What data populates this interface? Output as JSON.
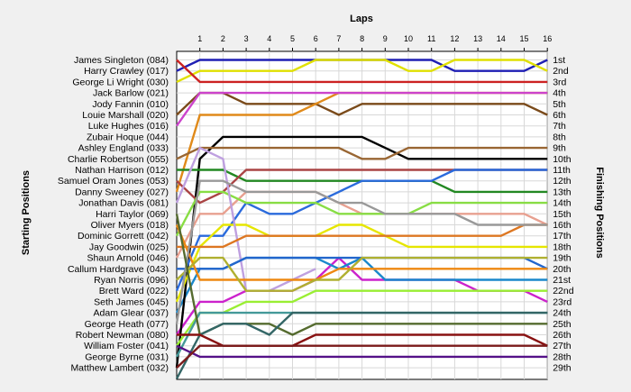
{
  "chart_data": {
    "type": "line",
    "title": "",
    "xlabel": "Laps",
    "ylabel_left": "Starting Positions",
    "ylabel_right": "Finishing Positions",
    "laps": [
      1,
      2,
      3,
      4,
      5,
      6,
      7,
      8,
      9,
      10,
      11,
      12,
      13,
      14,
      15,
      16
    ],
    "finish_labels": [
      "1st",
      "2nd",
      "3rd",
      "4th",
      "5th",
      "6th",
      "7th",
      "8th",
      "9th",
      "10th",
      "11th",
      "12th",
      "13th",
      "14th",
      "15th",
      "16th",
      "17th",
      "18th",
      "19th",
      "20th",
      "21st",
      "22nd",
      "23rd",
      "24th",
      "25th",
      "26th",
      "27th",
      "28th",
      "29th"
    ],
    "grid": true,
    "series": [
      {
        "name": "James Singleton (084)",
        "color": "#1f1fb4",
        "positions": [
          2,
          1,
          1,
          1,
          1,
          1,
          1,
          1,
          1,
          1,
          1,
          1,
          2,
          2,
          2,
          2,
          1
        ]
      },
      {
        "name": "Harry Crawley (017)",
        "color": "#e0e000",
        "positions": [
          3,
          2,
          2,
          2,
          2,
          2,
          1,
          1,
          1,
          1,
          2,
          2,
          1,
          1,
          1,
          1,
          2
        ]
      },
      {
        "name": "George Li Wright (030)",
        "color": "#cc2222",
        "positions": [
          1,
          3,
          3,
          3,
          3,
          3,
          3,
          3,
          3,
          3,
          3,
          3,
          3,
          3,
          3,
          3,
          3
        ]
      },
      {
        "name": "Jack Barlow (021)",
        "color": "#7a4a1a",
        "positions": [
          6,
          4,
          4,
          5,
          5,
          5,
          5,
          6,
          5,
          5,
          5,
          5,
          5,
          5,
          5,
          5,
          6
        ]
      },
      {
        "name": "Jody Fannin (010)",
        "color": "#cc22cc",
        "positions": [
          26,
          23,
          23,
          22,
          22,
          22,
          21,
          19,
          21,
          21,
          21,
          21,
          21,
          22,
          22,
          22,
          23
        ]
      },
      {
        "name": "Louie Marshall (020)",
        "color": "#e08a1a",
        "positions": [
          13,
          6,
          6,
          6,
          6,
          6,
          5,
          4,
          4,
          4,
          4,
          4,
          4,
          4,
          4,
          4,
          4
        ]
      },
      {
        "name": "Luke Hughes (016)",
        "color": "#1a88cc",
        "positions": [
          24,
          20,
          20,
          19,
          19,
          19,
          19,
          20,
          19,
          21,
          21,
          21,
          21,
          21,
          21,
          21,
          21
        ]
      },
      {
        "name": "Zubair Hoque (044)",
        "color": "#000000",
        "positions": [
          29,
          10,
          8,
          8,
          8,
          8,
          8,
          8,
          8,
          9,
          10,
          10,
          10,
          10,
          10,
          10,
          10
        ]
      },
      {
        "name": "Ashley England (033)",
        "color": "#996633",
        "positions": [
          10,
          9,
          9,
          9,
          9,
          9,
          9,
          9,
          10,
          10,
          9,
          9,
          9,
          9,
          9,
          9,
          9
        ]
      },
      {
        "name": "Charlie Robertson (055)",
        "color": "#cc44cc",
        "positions": [
          7,
          4,
          4,
          4,
          4,
          4,
          4,
          4,
          4,
          4,
          4,
          4,
          4,
          4,
          4,
          4,
          4
        ]
      },
      {
        "name": "Nathan Harrison (012)",
        "color": "#228822",
        "positions": [
          11,
          11,
          11,
          12,
          12,
          12,
          12,
          12,
          12,
          12,
          12,
          12,
          13,
          13,
          13,
          13,
          13
        ]
      },
      {
        "name": "Samuel Oram Jones (053)",
        "color": "#aa4444",
        "positions": [
          12,
          14,
          13,
          11,
          11,
          11,
          11,
          11,
          11,
          11,
          11,
          11,
          11,
          11,
          11,
          11,
          11
        ]
      },
      {
        "name": "Danny Sweeney (027)",
        "color": "#e8a090",
        "positions": [
          19,
          15,
          15,
          13,
          13,
          13,
          13,
          14,
          15,
          15,
          15,
          15,
          15,
          15,
          15,
          15,
          16
        ]
      },
      {
        "name": "Jonathan Davis (081)",
        "color": "#2a6adc",
        "positions": [
          22,
          17,
          17,
          14,
          15,
          15,
          14,
          13,
          12,
          12,
          12,
          12,
          11,
          11,
          11,
          11,
          11
        ]
      },
      {
        "name": "Harri Taylor (069)",
        "color": "#88dd44",
        "positions": [
          17,
          13,
          13,
          14,
          14,
          14,
          14,
          15,
          15,
          15,
          15,
          14,
          14,
          14,
          14,
          14,
          14
        ]
      },
      {
        "name": "Oliver Myers (018)",
        "color": "#e6e600",
        "positions": [
          23,
          18,
          16,
          16,
          17,
          17,
          17,
          16,
          16,
          17,
          18,
          18,
          18,
          18,
          18,
          18,
          18
        ]
      },
      {
        "name": "Dominic Gorrett (042)",
        "color": "#bfa0e0",
        "positions": [
          14,
          9,
          10,
          22,
          22,
          21,
          20,
          null,
          null,
          null,
          null,
          null,
          null,
          null,
          null,
          null,
          null
        ]
      },
      {
        "name": "Jay Goodwin (025)",
        "color": "#dd7722",
        "positions": [
          18,
          18,
          18,
          17,
          17,
          17,
          17,
          17,
          17,
          17,
          17,
          17,
          17,
          17,
          17,
          16,
          16
        ]
      },
      {
        "name": "Shaun Arnold (046)",
        "color": "#2266cc",
        "positions": [
          20,
          20,
          20,
          19,
          19,
          19,
          19,
          19,
          19,
          19,
          19,
          19,
          19,
          19,
          19,
          19,
          20
        ]
      },
      {
        "name": "Callum Hardgrave (043)",
        "color": "#ee8811",
        "positions": [
          16,
          21,
          21,
          21,
          21,
          21,
          21,
          20,
          20,
          20,
          20,
          20,
          20,
          20,
          20,
          20,
          20
        ]
      },
      {
        "name": "Ryan Norris (096)",
        "color": "#b0b030",
        "positions": [
          21,
          19,
          19,
          22,
          22,
          22,
          21,
          21,
          19,
          19,
          19,
          19,
          19,
          19,
          19,
          19,
          19
        ]
      },
      {
        "name": "Brett Ward (022)",
        "color": "#999999",
        "positions": [
          25,
          12,
          12,
          13,
          13,
          13,
          13,
          14,
          14,
          15,
          15,
          15,
          15,
          16,
          16,
          16,
          16
        ]
      },
      {
        "name": "Seth James (045)",
        "color": "#99ee33",
        "positions": [
          27,
          24,
          24,
          23,
          23,
          23,
          22,
          22,
          22,
          22,
          22,
          22,
          22,
          22,
          22,
          22,
          22
        ]
      },
      {
        "name": "Adam Glear (037)",
        "color": "#449999",
        "positions": [
          28,
          24,
          24,
          24,
          24,
          24,
          24,
          24,
          24,
          24,
          24,
          24,
          24,
          24,
          24,
          24,
          24
        ]
      },
      {
        "name": "George Heath (077)",
        "color": "#556b2f",
        "positions": [
          15,
          26,
          25,
          25,
          25,
          26,
          25,
          25,
          25,
          25,
          25,
          25,
          25,
          25,
          25,
          25,
          25
        ]
      },
      {
        "name": "Robert Newman (080)",
        "color": "#336666",
        "positions": [
          30,
          26,
          25,
          25,
          26,
          24,
          24,
          24,
          24,
          24,
          24,
          24,
          24,
          24,
          24,
          24,
          24
        ]
      },
      {
        "name": "William Foster (041)",
        "color": "#881111",
        "positions": [
          26,
          26,
          27,
          27,
          27,
          27,
          26,
          26,
          26,
          26,
          26,
          26,
          26,
          26,
          26,
          26,
          27
        ]
      },
      {
        "name": "George Byrne (031)",
        "color": "#551188",
        "positions": [
          27,
          28,
          28,
          28,
          28,
          28,
          28,
          28,
          28,
          28,
          28,
          28,
          28,
          28,
          28,
          28,
          28
        ]
      },
      {
        "name": "Matthew Lambert (032)",
        "color": "#7a1a1a",
        "positions": [
          29,
          27,
          27,
          27,
          27,
          27,
          27,
          27,
          27,
          27,
          27,
          27,
          27,
          27,
          27,
          27,
          27
        ]
      }
    ]
  }
}
